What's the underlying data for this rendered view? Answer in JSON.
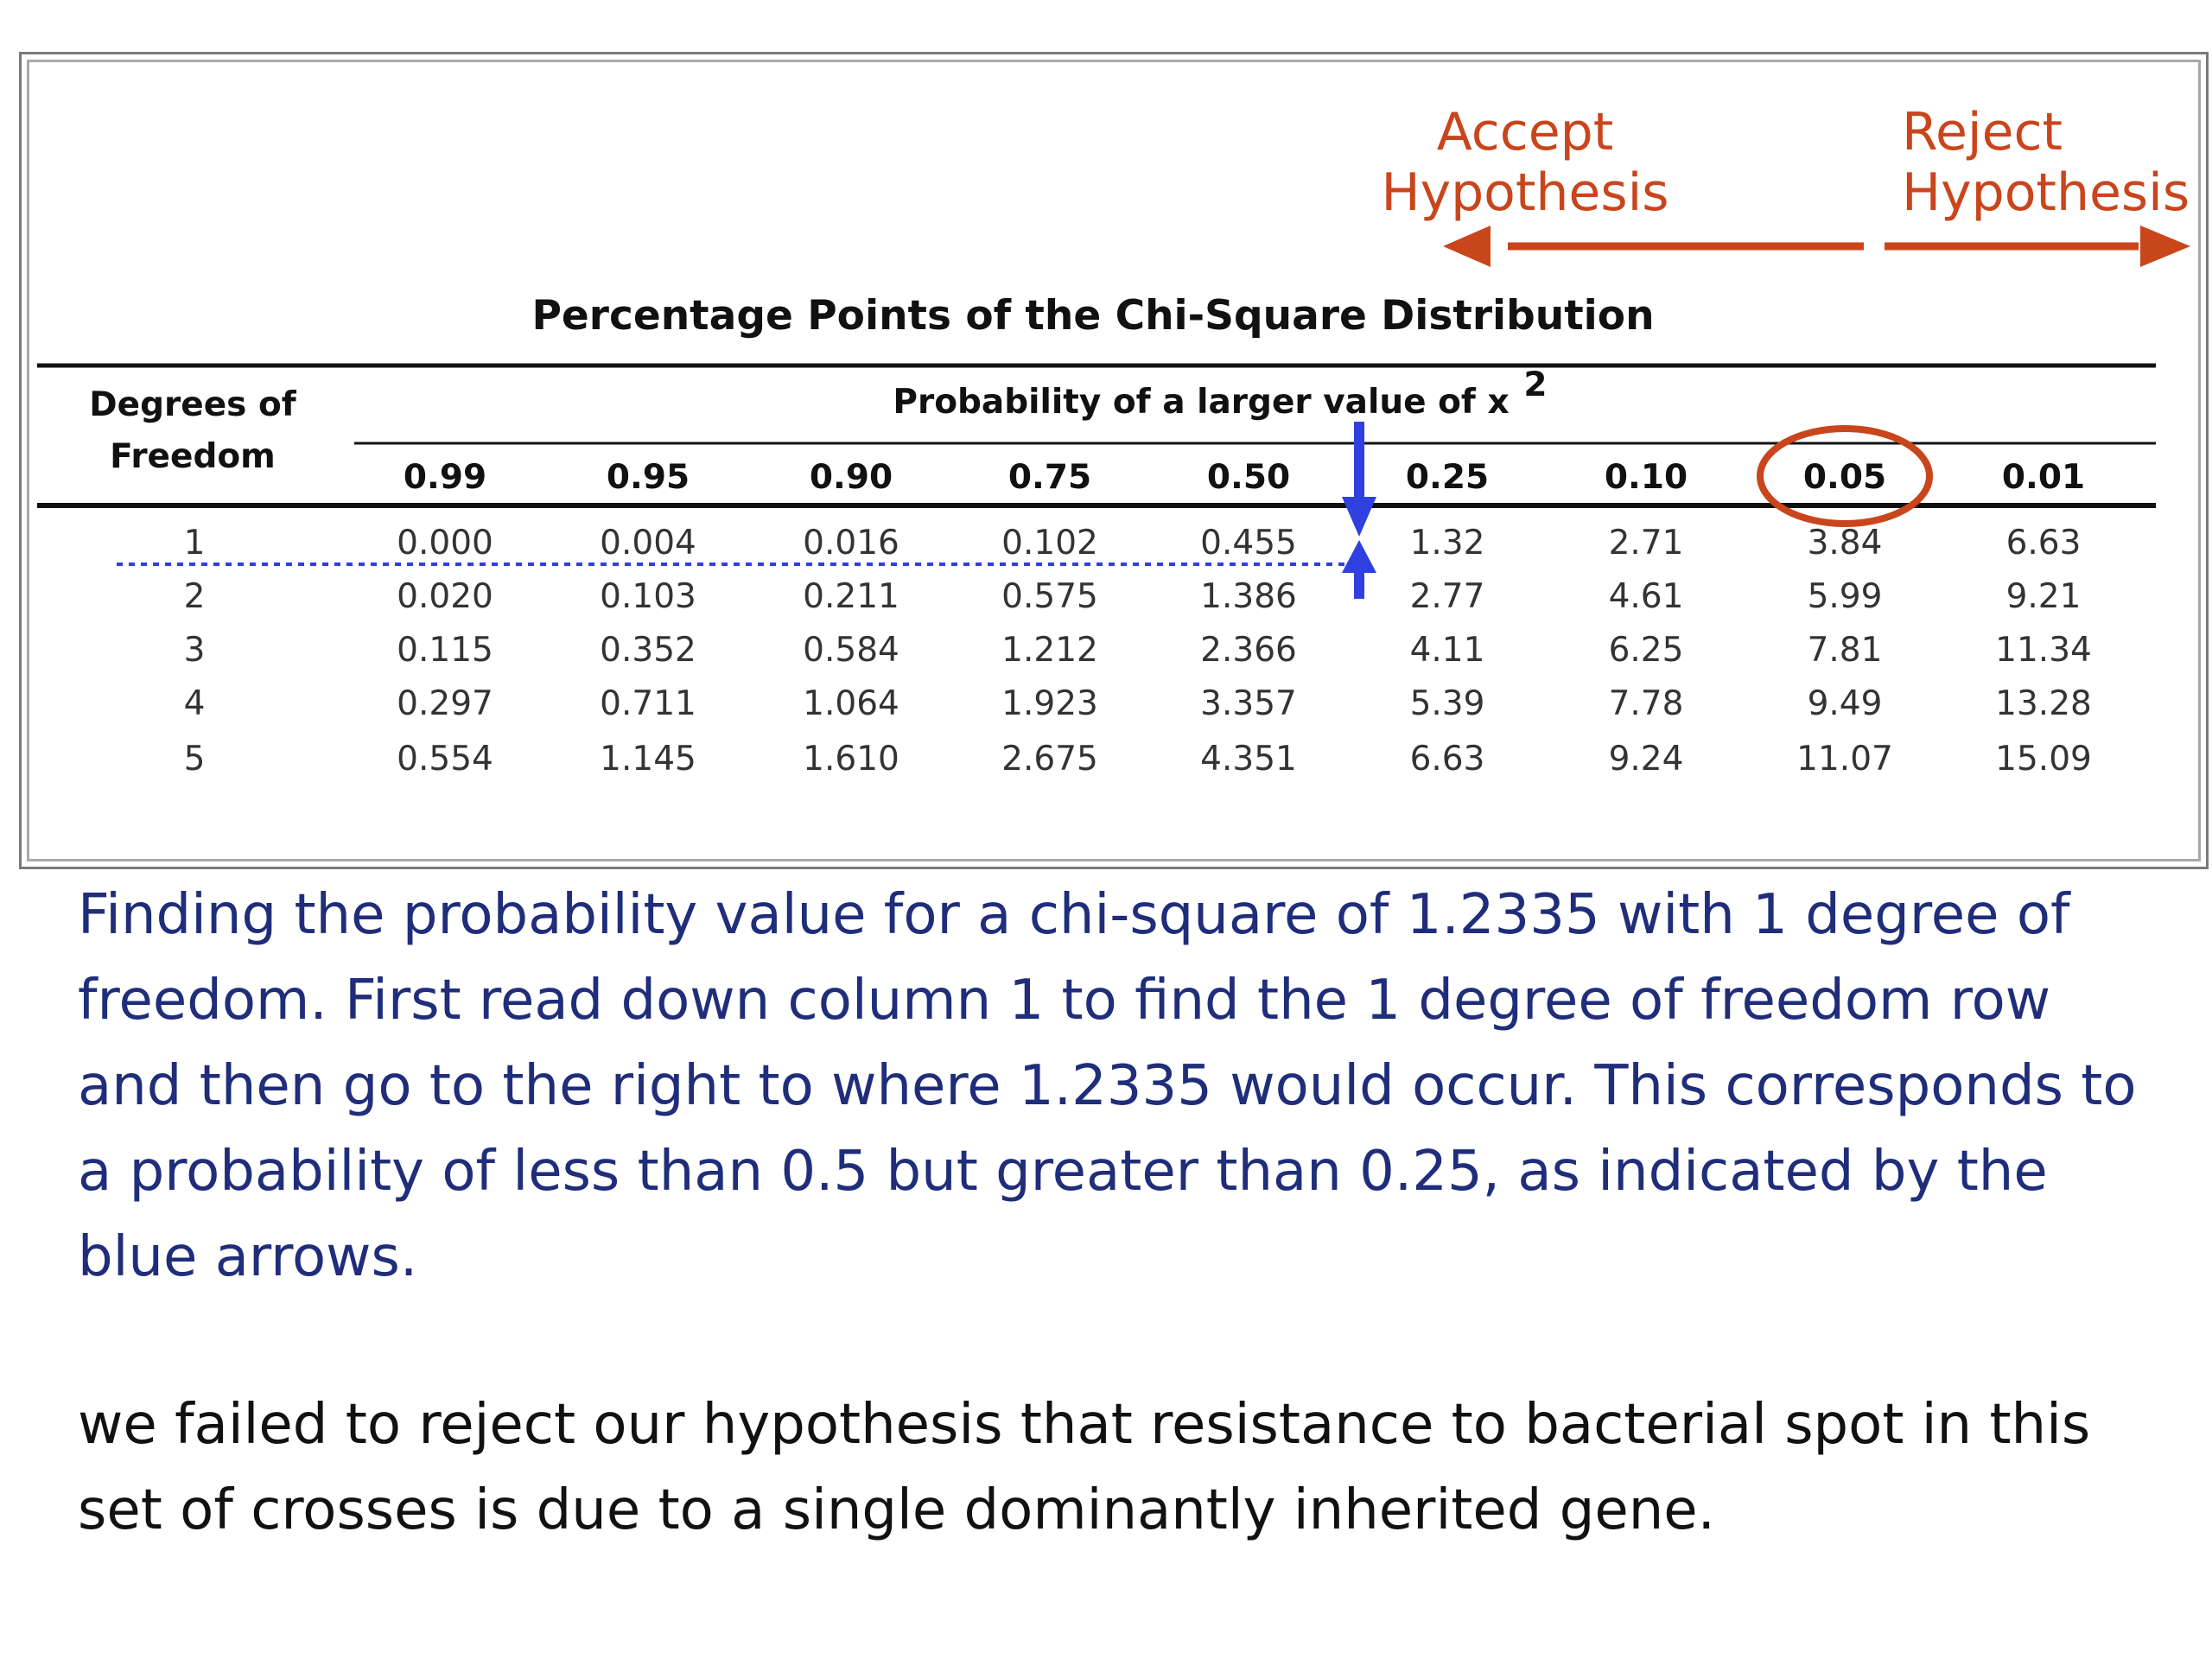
{
  "figure": {
    "accept_label": [
      "Accept",
      "Hypothesis"
    ],
    "reject_label": [
      "Reject",
      "Hypothesis"
    ],
    "table_title": "Percentage Points of the Chi-Square Distribution",
    "row_header": [
      "Degrees of",
      "Freedom"
    ],
    "prob_header": "Probability of a larger value of x",
    "prob_header_sup": "2",
    "columns": [
      "0.99",
      "0.95",
      "0.90",
      "0.75",
      "0.50",
      "0.25",
      "0.10",
      "0.05",
      "0.01"
    ],
    "rows": [
      {
        "df": "1",
        "values": [
          "0.000",
          "0.004",
          "0.016",
          "0.102",
          "0.455",
          "1.32",
          "2.71",
          "3.84",
          "6.63"
        ]
      },
      {
        "df": "2",
        "values": [
          "0.020",
          "0.103",
          "0.211",
          "0.575",
          "1.386",
          "2.77",
          "4.61",
          "5.99",
          "9.21"
        ]
      },
      {
        "df": "3",
        "values": [
          "0.115",
          "0.352",
          "0.584",
          "1.212",
          "2.366",
          "4.11",
          "6.25",
          "7.81",
          "11.34"
        ]
      },
      {
        "df": "4",
        "values": [
          "0.297",
          "0.711",
          "1.064",
          "1.923",
          "3.357",
          "5.39",
          "7.78",
          "9.49",
          "13.28"
        ]
      },
      {
        "df": "5",
        "values": [
          "0.554",
          "1.145",
          "1.610",
          "2.675",
          "4.351",
          "6.63",
          "9.24",
          "11.07",
          "15.09"
        ]
      }
    ],
    "circled_column": "0.05",
    "colors": {
      "annotation_orange": "#c9451c",
      "arrow_blue": "#2f3fe0",
      "caption_blue": "#1f2d7a"
    }
  },
  "caption": "Finding the probability value for a chi-square of 1.2335 with 1 degree of freedom. First read down column 1 to find the 1 degree of freedom row and then go to the right to where 1.2335 would occur. This corresponds to a probability of less than 0.5 but greater than 0.25, as indicated by the blue arrows.",
  "conclusion": "we failed to reject our hypothesis that resistance to bacterial spot in this set of crosses is due to a single dominantly inherited gene."
}
